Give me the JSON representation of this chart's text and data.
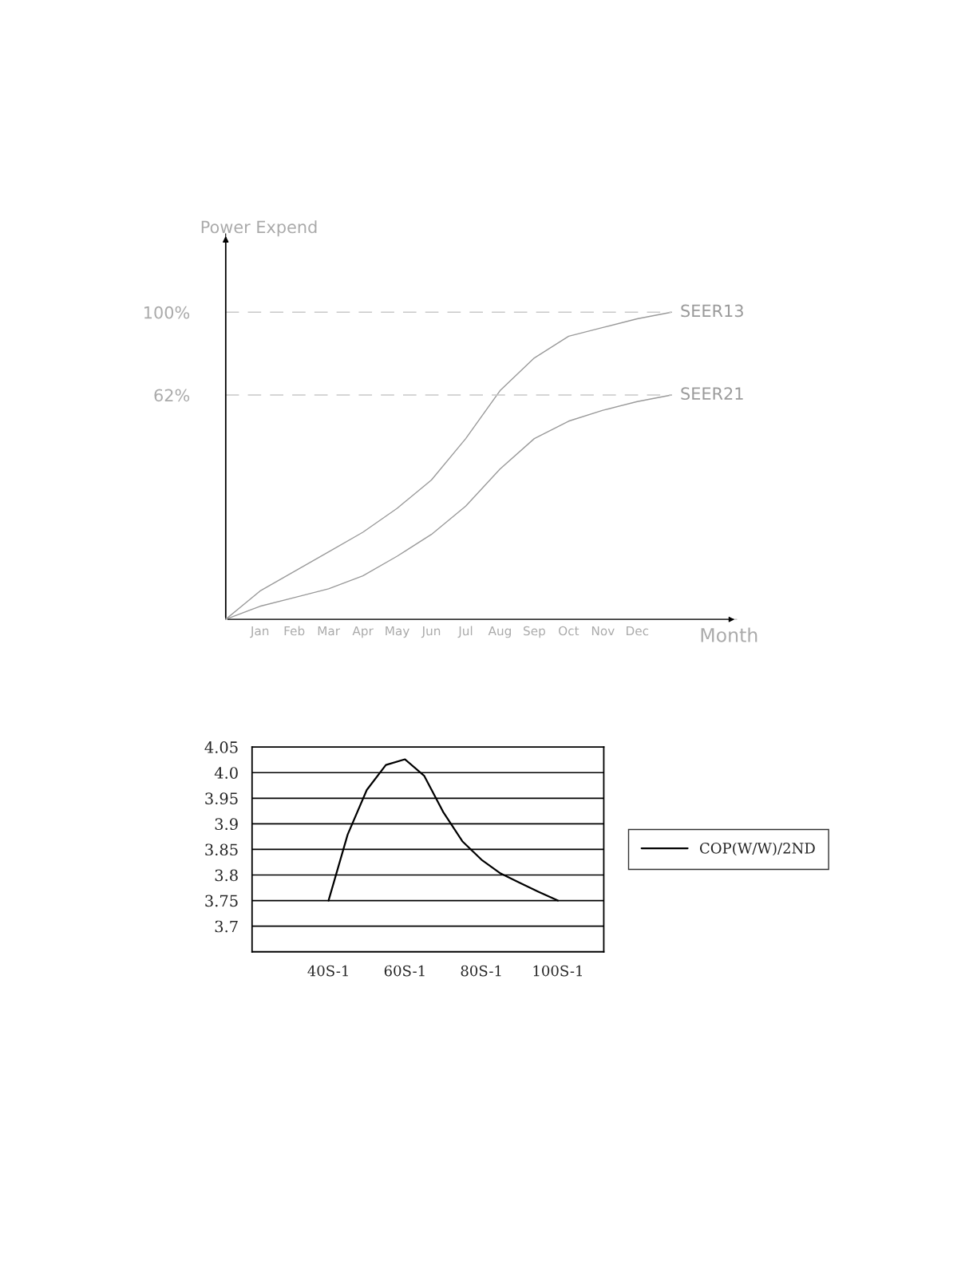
{
  "chart_data": [
    {
      "type": "line",
      "ylabel": "Power Expend",
      "xlabel": "Month",
      "ylim": [
        -41,
        136
      ],
      "yticks": [
        {
          "value": 62,
          "label": "62%"
        },
        {
          "value": 100,
          "label": "100%"
        }
      ],
      "categories": [
        null,
        "Jan",
        "Feb",
        "Mar",
        "Apr",
        "May",
        "Jun",
        "Jul",
        "Aug",
        "Sep",
        "Oct",
        "Nov",
        "Dec",
        null
      ],
      "series": [
        {
          "name": "SEER13",
          "color": "#9a9a9a",
          "values": [
            -41,
            -28,
            -19,
            -10,
            -1,
            10,
            23,
            42,
            64,
            79,
            89,
            93,
            97,
            100
          ]
        },
        {
          "name": "SEER21",
          "color": "#9a9a9a",
          "values": [
            -41,
            -35,
            -31,
            -27,
            -21,
            -12,
            -2,
            11,
            28,
            42,
            50,
            55,
            59,
            62
          ]
        }
      ],
      "ref_lines": [
        {
          "axis": "y",
          "value": 100,
          "color": "#c8c8c8",
          "line_style": "dashed"
        },
        {
          "axis": "y",
          "value": 62,
          "color": "#c8c8c8",
          "line_style": "dashed"
        }
      ]
    },
    {
      "type": "line",
      "ylim": [
        3.65,
        4.05
      ],
      "categories": [
        "40S-1",
        null,
        null,
        null,
        "60S-1",
        null,
        null,
        null,
        "80S-1",
        null,
        null,
        null,
        "100S-1"
      ],
      "yticks": [
        {
          "value": 3.7,
          "label": "3.7"
        },
        {
          "value": 3.75,
          "label": "3.75"
        },
        {
          "value": 3.8,
          "label": "3.8"
        },
        {
          "value": 3.85,
          "label": "3.85"
        },
        {
          "value": 3.9,
          "label": "3.9"
        },
        {
          "value": 3.95,
          "label": "3.95"
        },
        {
          "value": 4.0,
          "label": "4.0"
        },
        {
          "value": 4.05,
          "label": "4.05"
        }
      ],
      "series": [
        {
          "name": "COP(W/W)/2ND",
          "color": "#000000",
          "values": [
            3.75,
            3.879,
            3.966,
            4.015,
            4.026,
            3.994,
            3.923,
            3.866,
            3.83,
            3.803,
            3.785,
            3.767,
            3.75
          ]
        }
      ],
      "grid": "y",
      "legend": "right"
    }
  ]
}
